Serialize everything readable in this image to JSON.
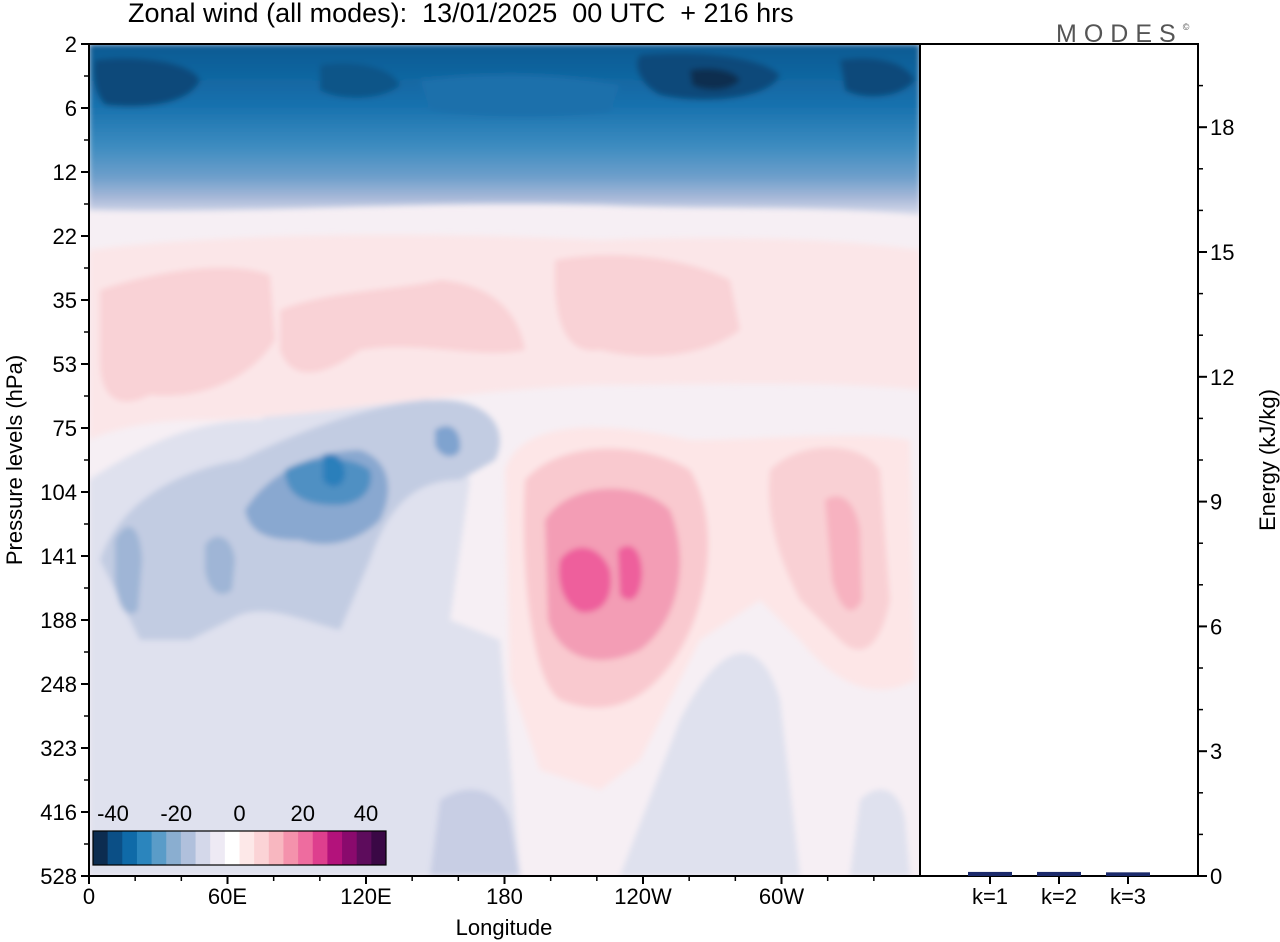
{
  "title": "Zonal wind (all modes):  13/01/2025  00 UTC  + 216 hrs",
  "logo": "MODES",
  "chart_data": [
    {
      "type": "heatmap",
      "title": "Zonal wind (all modes):  13/01/2025  00 UTC  + 216 hrs",
      "xlabel": "Longitude",
      "ylabel": "Pressure levels (hPa)",
      "xticks": [
        "0",
        "60E",
        "120E",
        "180",
        "120W",
        "60W"
      ],
      "yticks": [
        "2",
        "6",
        "12",
        "22",
        "35",
        "53",
        "75",
        "104",
        "141",
        "188",
        "248",
        "323",
        "416",
        "528"
      ],
      "colorbar": {
        "tick_labels": [
          "-40",
          "-20",
          "0",
          "20",
          "40"
        ],
        "colors": [
          "#0c2c50",
          "#0b4f86",
          "#0f6aa8",
          "#2b85bd",
          "#5a9cc8",
          "#8aaed0",
          "#b0c0dc",
          "#d4d8ea",
          "#eeeaf4",
          "#ffffff",
          "#fde8e8",
          "#fbd3d6",
          "#f8b7c0",
          "#f492ac",
          "#ee6c9f",
          "#de3f8e",
          "#b3127b",
          "#8a0a6d",
          "#5d0c5c",
          "#3a0845"
        ]
      },
      "features": [
        {
          "label": "stratospheric easterlies",
          "value": -35
        },
        {
          "label": "westerly maximum near 160W 141-188 hPa",
          "value": 28
        },
        {
          "label": "easterly maximum near 110E 104 hPa",
          "value": -20
        }
      ]
    },
    {
      "type": "bar",
      "categories": [
        "k=1",
        "k=2",
        "k=3"
      ],
      "values": [
        0.05,
        0.05,
        0.04
      ],
      "ylabel": "Energy (kJ/kg)",
      "yticks": [
        "0",
        "3",
        "6",
        "9",
        "12",
        "15",
        "18"
      ],
      "ylim": [
        0,
        20
      ]
    }
  ]
}
